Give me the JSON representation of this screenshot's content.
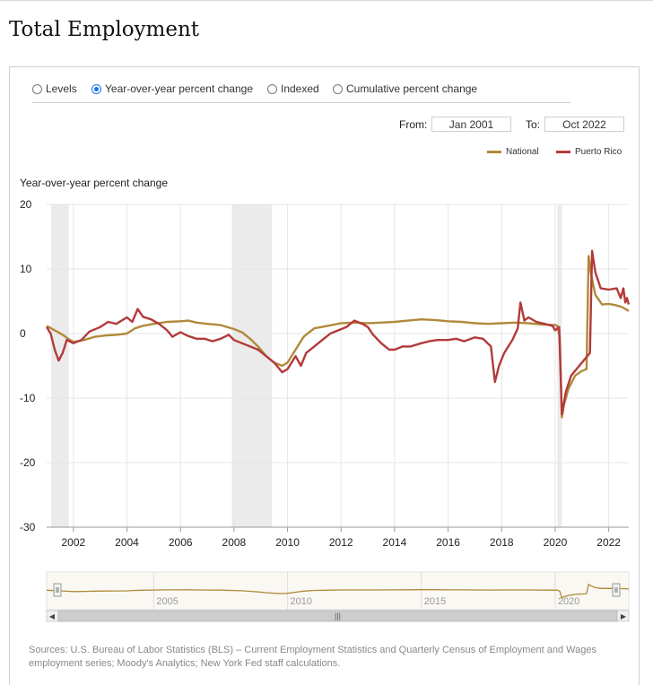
{
  "page": {
    "title": "Total Employment"
  },
  "tabs": [
    {
      "label": "Levels",
      "selected": false
    },
    {
      "label": "Year-over-year percent change",
      "selected": true
    },
    {
      "label": "Indexed",
      "selected": false
    },
    {
      "label": "Cumulative percent change",
      "selected": false
    }
  ],
  "range": {
    "from_label": "From:",
    "from_value": "Jan 2001",
    "to_label": "To:",
    "to_value": "Oct 2022"
  },
  "colors": {
    "national": "#B08A3A",
    "puerto_rico": "#B33A3A",
    "recession": "#EBEBEB",
    "grid": "#E6E6E6"
  },
  "chart_data": {
    "type": "line",
    "ylabel": "Year-over-year percent change",
    "ylim": [
      -30,
      20
    ],
    "yticks": [
      20,
      10,
      0,
      -10,
      -20,
      -30
    ],
    "xlim": [
      2001.0,
      2022.75
    ],
    "xticks": [
      2002,
      2004,
      2006,
      2008,
      2010,
      2012,
      2014,
      2016,
      2018,
      2020,
      2022
    ],
    "grid": true,
    "legend": "top-right",
    "recessions": [
      [
        2001.17,
        2001.83
      ],
      [
        2007.92,
        2009.42
      ],
      [
        2020.08,
        2020.25
      ]
    ],
    "series": [
      {
        "name": "National",
        "points": [
          [
            2001.0,
            1.2
          ],
          [
            2001.3,
            0.5
          ],
          [
            2001.6,
            -0.2
          ],
          [
            2001.8,
            -0.8
          ],
          [
            2002.0,
            -1.3
          ],
          [
            2002.4,
            -1.0
          ],
          [
            2002.8,
            -0.5
          ],
          [
            2003.2,
            -0.3
          ],
          [
            2003.6,
            -0.2
          ],
          [
            2004.0,
            0.0
          ],
          [
            2004.3,
            0.8
          ],
          [
            2004.6,
            1.2
          ],
          [
            2005.0,
            1.5
          ],
          [
            2005.5,
            1.8
          ],
          [
            2006.0,
            1.9
          ],
          [
            2006.3,
            2.0
          ],
          [
            2006.6,
            1.7
          ],
          [
            2007.0,
            1.5
          ],
          [
            2007.5,
            1.3
          ],
          [
            2008.0,
            0.7
          ],
          [
            2008.3,
            0.2
          ],
          [
            2008.6,
            -0.8
          ],
          [
            2008.9,
            -2.0
          ],
          [
            2009.2,
            -3.5
          ],
          [
            2009.5,
            -4.5
          ],
          [
            2009.8,
            -5.0
          ],
          [
            2010.0,
            -4.5
          ],
          [
            2010.3,
            -2.5
          ],
          [
            2010.6,
            -0.5
          ],
          [
            2011.0,
            0.8
          ],
          [
            2011.5,
            1.2
          ],
          [
            2012.0,
            1.6
          ],
          [
            2012.5,
            1.7
          ],
          [
            2013.0,
            1.6
          ],
          [
            2013.5,
            1.7
          ],
          [
            2014.0,
            1.8
          ],
          [
            2014.5,
            2.0
          ],
          [
            2015.0,
            2.2
          ],
          [
            2015.5,
            2.1
          ],
          [
            2016.0,
            1.9
          ],
          [
            2016.5,
            1.8
          ],
          [
            2017.0,
            1.6
          ],
          [
            2017.5,
            1.5
          ],
          [
            2018.0,
            1.6
          ],
          [
            2018.5,
            1.7
          ],
          [
            2019.0,
            1.6
          ],
          [
            2019.5,
            1.4
          ],
          [
            2020.0,
            1.3
          ],
          [
            2020.08,
            1.2
          ],
          [
            2020.17,
            -0.5
          ],
          [
            2020.25,
            -13.0
          ],
          [
            2020.33,
            -11.0
          ],
          [
            2020.5,
            -8.5
          ],
          [
            2020.75,
            -6.5
          ],
          [
            2021.0,
            -5.8
          ],
          [
            2021.17,
            -5.5
          ],
          [
            2021.25,
            12.0
          ],
          [
            2021.35,
            9.0
          ],
          [
            2021.5,
            6.0
          ],
          [
            2021.75,
            4.5
          ],
          [
            2022.0,
            4.6
          ],
          [
            2022.25,
            4.4
          ],
          [
            2022.5,
            4.1
          ],
          [
            2022.75,
            3.5
          ]
        ]
      },
      {
        "name": "Puerto Rico",
        "points": [
          [
            2001.0,
            1.0
          ],
          [
            2001.15,
            0.0
          ],
          [
            2001.3,
            -2.5
          ],
          [
            2001.45,
            -4.2
          ],
          [
            2001.6,
            -3.0
          ],
          [
            2001.75,
            -1.0
          ],
          [
            2002.0,
            -1.5
          ],
          [
            2002.3,
            -1.0
          ],
          [
            2002.6,
            0.3
          ],
          [
            2003.0,
            1.0
          ],
          [
            2003.3,
            1.8
          ],
          [
            2003.6,
            1.5
          ],
          [
            2004.0,
            2.5
          ],
          [
            2004.2,
            1.8
          ],
          [
            2004.4,
            3.8
          ],
          [
            2004.6,
            2.6
          ],
          [
            2004.9,
            2.2
          ],
          [
            2005.2,
            1.5
          ],
          [
            2005.5,
            0.5
          ],
          [
            2005.7,
            -0.5
          ],
          [
            2006.0,
            0.2
          ],
          [
            2006.3,
            -0.4
          ],
          [
            2006.6,
            -0.8
          ],
          [
            2006.9,
            -0.8
          ],
          [
            2007.2,
            -1.2
          ],
          [
            2007.5,
            -0.8
          ],
          [
            2007.8,
            -0.2
          ],
          [
            2008.0,
            -1.0
          ],
          [
            2008.3,
            -1.5
          ],
          [
            2008.6,
            -2.0
          ],
          [
            2008.9,
            -2.5
          ],
          [
            2009.2,
            -3.5
          ],
          [
            2009.5,
            -4.5
          ],
          [
            2009.8,
            -6.0
          ],
          [
            2010.0,
            -5.5
          ],
          [
            2010.3,
            -3.5
          ],
          [
            2010.5,
            -5.0
          ],
          [
            2010.7,
            -3.0
          ],
          [
            2011.0,
            -2.0
          ],
          [
            2011.3,
            -1.0
          ],
          [
            2011.6,
            0.0
          ],
          [
            2011.9,
            0.5
          ],
          [
            2012.2,
            1.0
          ],
          [
            2012.5,
            2.0
          ],
          [
            2012.8,
            1.5
          ],
          [
            2013.0,
            1.0
          ],
          [
            2013.2,
            -0.2
          ],
          [
            2013.5,
            -1.5
          ],
          [
            2013.8,
            -2.5
          ],
          [
            2014.0,
            -2.5
          ],
          [
            2014.3,
            -2.0
          ],
          [
            2014.6,
            -2.0
          ],
          [
            2015.0,
            -1.5
          ],
          [
            2015.3,
            -1.2
          ],
          [
            2015.6,
            -1.0
          ],
          [
            2016.0,
            -1.0
          ],
          [
            2016.3,
            -0.8
          ],
          [
            2016.6,
            -1.2
          ],
          [
            2017.0,
            -0.6
          ],
          [
            2017.3,
            -0.8
          ],
          [
            2017.6,
            -2.0
          ],
          [
            2017.75,
            -7.5
          ],
          [
            2017.9,
            -5.0
          ],
          [
            2018.1,
            -3.0
          ],
          [
            2018.4,
            -1.0
          ],
          [
            2018.6,
            0.8
          ],
          [
            2018.7,
            4.8
          ],
          [
            2018.85,
            2.0
          ],
          [
            2019.0,
            2.5
          ],
          [
            2019.3,
            1.8
          ],
          [
            2019.6,
            1.5
          ],
          [
            2019.9,
            1.2
          ],
          [
            2020.0,
            0.5
          ],
          [
            2020.15,
            1.0
          ],
          [
            2020.25,
            -12.5
          ],
          [
            2020.4,
            -9.0
          ],
          [
            2020.6,
            -6.5
          ],
          [
            2020.9,
            -5.0
          ],
          [
            2021.1,
            -4.0
          ],
          [
            2021.3,
            -3.0
          ],
          [
            2021.38,
            12.8
          ],
          [
            2021.5,
            9.5
          ],
          [
            2021.7,
            7.0
          ],
          [
            2022.0,
            6.8
          ],
          [
            2022.3,
            7.0
          ],
          [
            2022.45,
            5.5
          ],
          [
            2022.55,
            7.0
          ],
          [
            2022.62,
            4.8
          ],
          [
            2022.68,
            5.5
          ],
          [
            2022.75,
            4.5
          ]
        ]
      }
    ],
    "navigator": {
      "labels": [
        "2005",
        "2010",
        "2015",
        "2020"
      ],
      "years": [
        2005,
        2010,
        2015,
        2020
      ]
    }
  },
  "footer": {
    "sources": "Sources: U.S. Bureau of Labor Statistics (BLS) – Current Employment Statistics and Quarterly Census of Employment and Wages employment series; Moody's Analytics; New York Fed staff calculations."
  }
}
